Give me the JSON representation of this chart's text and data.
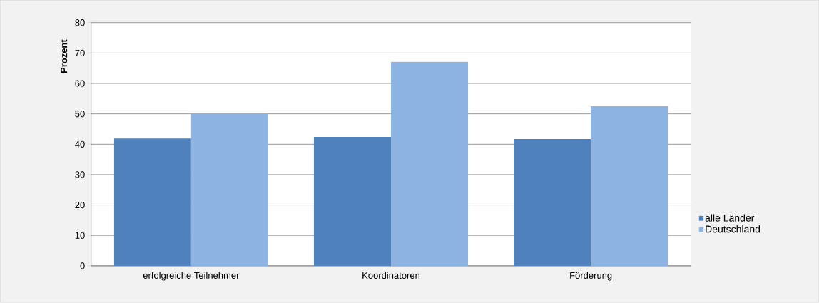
{
  "chart_data": {
    "type": "bar",
    "ylabel": "Prozent",
    "categories": [
      "erfolgreiche Teilnehmer",
      "Koordinatoren",
      "Förderung"
    ],
    "series": [
      {
        "name": "alle Länder",
        "color": "#4f81bd",
        "values": [
          41.9,
          42.4,
          41.7
        ]
      },
      {
        "name": "Deutschland",
        "color": "#8eb4e3",
        "values": [
          50,
          67.1,
          52.5
        ]
      }
    ],
    "ylim": [
      0,
      80
    ],
    "yticks": [
      0,
      10,
      20,
      30,
      40,
      50,
      60,
      70,
      80
    ],
    "grid": "y",
    "legend": "right"
  }
}
